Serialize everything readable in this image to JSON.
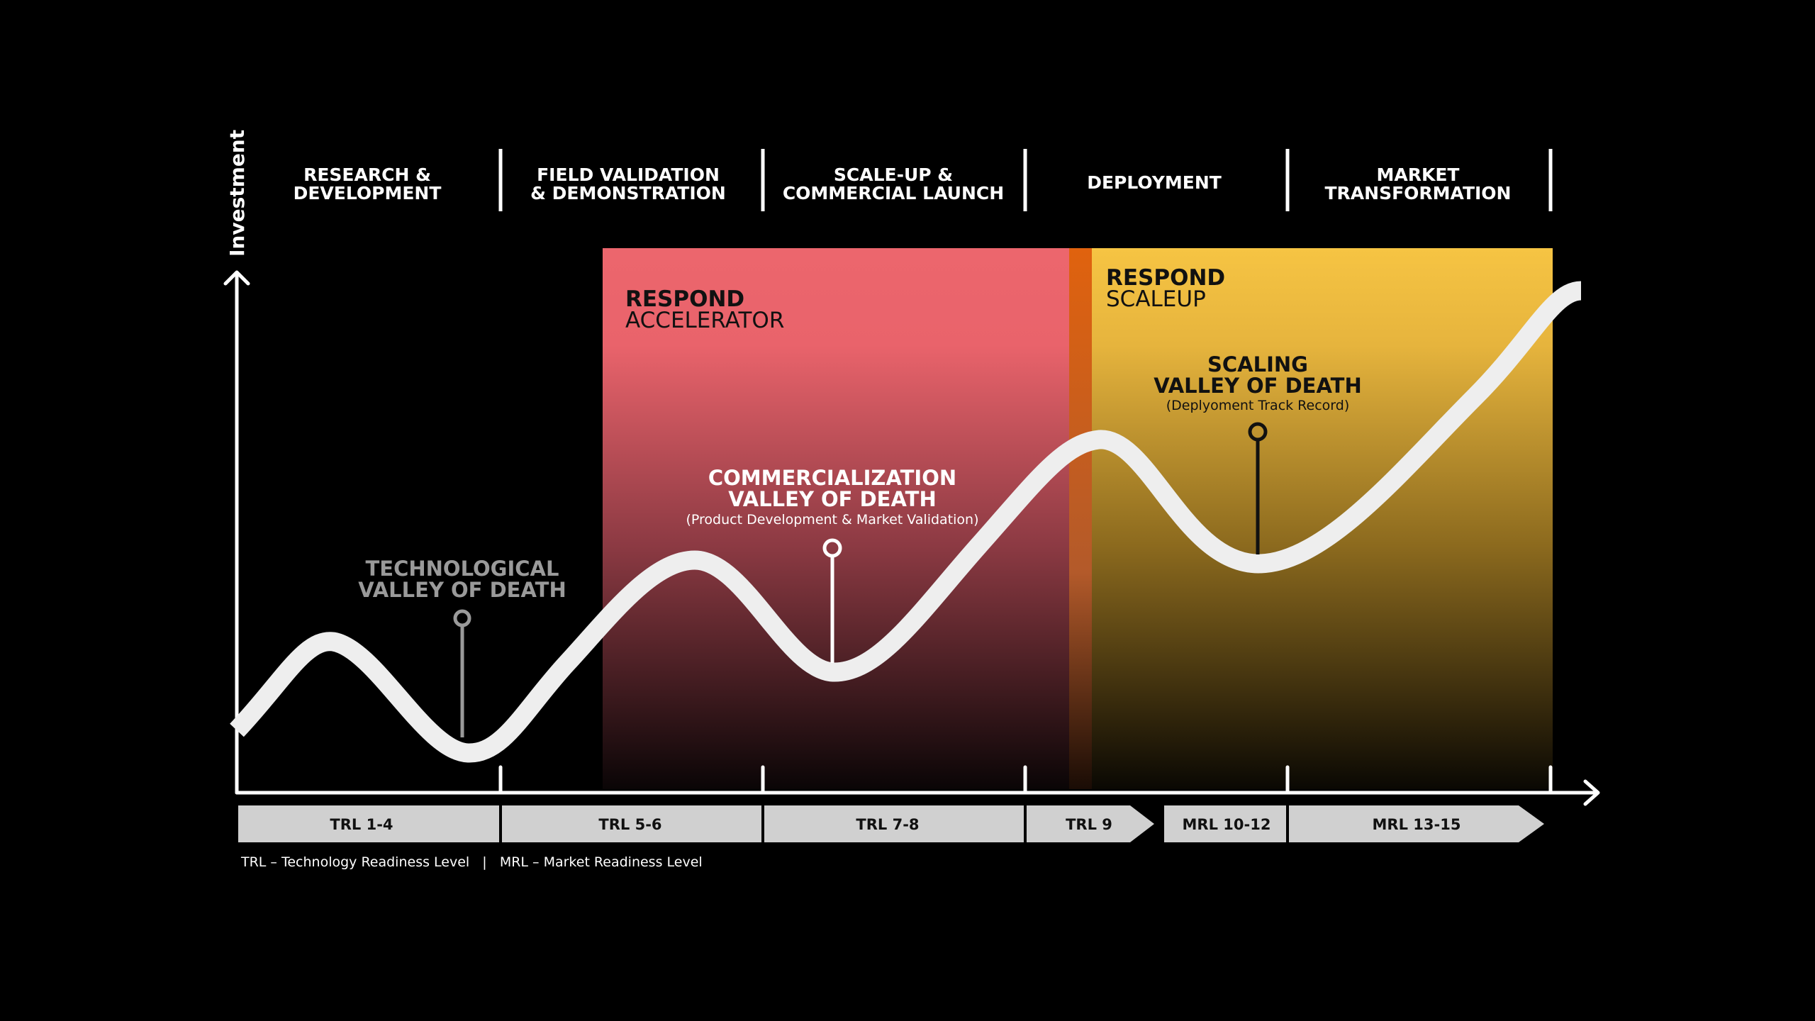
{
  "axis": {
    "y_label": "Investment"
  },
  "phases": [
    {
      "line1": "RESEARCH &",
      "line2": "DEVELOPMENT"
    },
    {
      "line1": "FIELD VALIDATION",
      "line2": "& DEMONSTRATION"
    },
    {
      "line1": "SCALE-UP &",
      "line2": "COMMERCIAL LAUNCH"
    },
    {
      "line1": "DEPLOYMENT",
      "line2": ""
    },
    {
      "line1": "MARKET",
      "line2": "TRANSFORMATION"
    }
  ],
  "programs": [
    {
      "bold": "RESPOND",
      "light": "ACCELERATOR"
    },
    {
      "bold": "RESPOND",
      "light": "SCALEUP"
    }
  ],
  "valleys": [
    {
      "line1": "TECHNOLOGICAL",
      "line2": "VALLEY OF DEATH",
      "sub": ""
    },
    {
      "line1": "COMMERCIALIZATION",
      "line2": "VALLEY OF DEATH",
      "sub": "(Product Development & Market Validation)"
    },
    {
      "line1": "SCALING",
      "line2": "VALLEY OF DEATH",
      "sub": "(Deplyoment Track Record)"
    }
  ],
  "steps": [
    {
      "label": "TRL 1-4"
    },
    {
      "label": "TRL 5-6"
    },
    {
      "label": "TRL 7-8"
    },
    {
      "label": "TRL 9"
    },
    {
      "label": "MRL 10-12"
    },
    {
      "label": "MRL 13-15"
    }
  ],
  "legend": "TRL – Technology Readiness Level   |   MRL – Market Readiness Level",
  "colors": {
    "background": "#000000",
    "accelerator": "#ec666d",
    "scaleup": "#f6c443",
    "divider": "#e0620e",
    "curve": "#eeeeee",
    "steps": "#d0d0d0"
  }
}
